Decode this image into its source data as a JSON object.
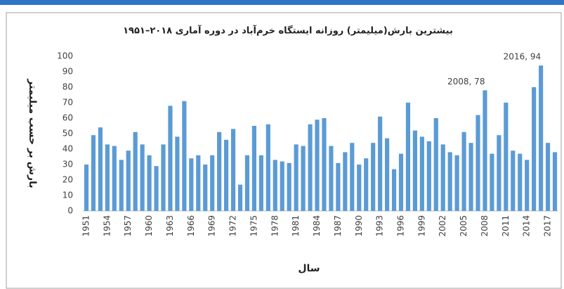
{
  "chart_data": {
    "type": "bar",
    "title": "بیشترین بارش(میلیمتر) روزانه ایستگاه خرم‌آباد در دوره آماری ۲۰۱۸–۱۹۵۱",
    "x_label": "سال",
    "y_label": "بارش بر حسب میلیمتر",
    "x": [
      1951,
      1952,
      1953,
      1954,
      1955,
      1956,
      1957,
      1958,
      1959,
      1960,
      1961,
      1962,
      1963,
      1964,
      1965,
      1966,
      1967,
      1968,
      1969,
      1970,
      1971,
      1972,
      1973,
      1974,
      1975,
      1976,
      1977,
      1978,
      1979,
      1980,
      1981,
      1982,
      1983,
      1984,
      1985,
      1986,
      1987,
      1988,
      1989,
      1990,
      1991,
      1992,
      1993,
      1994,
      1995,
      1996,
      1997,
      1998,
      1999,
      2000,
      2001,
      2002,
      2003,
      2004,
      2005,
      2006,
      2007,
      2008,
      2009,
      2010,
      2011,
      2012,
      2013,
      2014,
      2015,
      2016,
      2017,
      2018
    ],
    "values": [
      30,
      49,
      54,
      43,
      42,
      33,
      39,
      51,
      43,
      36,
      29,
      43,
      68,
      48,
      71,
      34,
      36,
      30,
      36,
      51,
      46,
      53,
      17,
      36,
      55,
      36,
      56,
      33,
      32,
      31,
      43,
      42,
      56,
      59,
      60,
      42,
      31,
      38,
      44,
      30,
      34,
      44,
      61,
      47,
      27,
      37,
      70,
      52,
      48,
      45,
      60,
      43,
      38,
      36,
      51,
      44,
      62,
      78,
      37,
      49,
      70,
      39,
      37,
      33,
      80,
      94,
      44,
      38
    ],
    "value_labels": [
      null,
      null,
      null,
      null,
      null,
      null,
      null,
      null,
      null,
      null,
      null,
      null,
      null,
      null,
      null,
      null,
      null,
      null,
      null,
      null,
      null,
      null,
      null,
      null,
      null,
      null,
      null,
      null,
      null,
      null,
      null,
      null,
      null,
      null,
      null,
      null,
      null,
      null,
      null,
      null,
      null,
      null,
      null,
      null,
      null,
      null,
      null,
      null,
      null,
      null,
      null,
      null,
      null,
      null,
      null,
      null,
      null,
      "2008, 78",
      null,
      null,
      null,
      null,
      null,
      null,
      null,
      "2016, 94",
      null,
      null
    ],
    "color": "#5b9bd5",
    "xlim": [
      1950.5,
      2018.5
    ],
    "xticks": [
      1951,
      1954,
      1957,
      1960,
      1963,
      1966,
      1969,
      1972,
      1975,
      1978,
      1981,
      1984,
      1987,
      1990,
      1993,
      1996,
      1999,
      2002,
      2005,
      2008,
      2011,
      2014,
      2017
    ],
    "ylim": [
      0,
      100
    ],
    "yticks": [
      0,
      10,
      20,
      30,
      40,
      50,
      60,
      70,
      80,
      90,
      100
    ],
    "grid": false
  }
}
